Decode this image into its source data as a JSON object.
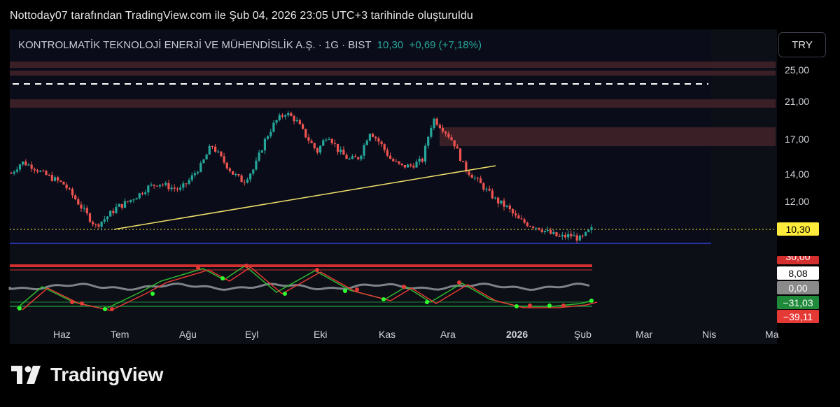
{
  "caption": "Nottoday07 tarafından TradingView.com ile Şub 04, 2026 23:05 UTC+3 tarihinde oluşturuldu",
  "symbol": {
    "name": "KONTROLMATİK TEKNOLOJİ ENERJİ VE MÜHENDİSLİK A.Ş.",
    "sep1": "·",
    "interval": "1G",
    "sep2": "·",
    "exchange": "BIST",
    "price": "10,30",
    "change": "+0,69 (+7,18%)"
  },
  "currency_button": "TRY",
  "colors": {
    "up": "#26a69a",
    "down": "#ef5350",
    "accent_green": "#1f8a3a",
    "zone": "#3a1f26",
    "trend": "#f0e06a"
  },
  "price_axis": [
    "25,00",
    "21,00",
    "17,00",
    "14,00",
    "12,00"
  ],
  "last_price_tag": "10,30",
  "indicator_tags": {
    "top_hidden": "30,00",
    "value": "8,08",
    "zero": "0,00",
    "lower": "−31,03",
    "bottom": "−39,11"
  },
  "time_axis": [
    "Haz",
    "Tem",
    "Ağu",
    "Eyl",
    "Eki",
    "Kas",
    "Ara",
    "2026",
    "Şub",
    "Mar",
    "Nis",
    "Ma"
  ],
  "brand": {
    "logo_icon": "tradingview-logo-icon",
    "text": "TradingView"
  },
  "chart_data": {
    "type": "candlestick",
    "price_ticks": [
      25,
      21,
      17,
      14,
      12
    ],
    "last_price": 10.3,
    "trend_note": "",
    "series_close": [
      14.0,
      15.0,
      14.6,
      14.0,
      13.6,
      13.2,
      12.2,
      11.3,
      10.5,
      11.0,
      11.6,
      11.9,
      12.4,
      13.0,
      13.3,
      13.0,
      12.8,
      13.6,
      14.7,
      16.5,
      15.2,
      14.0,
      13.4,
      14.4,
      16.8,
      18.8,
      19.8,
      19.0,
      17.2,
      15.9,
      17.5,
      16.0,
      15.2,
      15.4,
      17.8,
      16.6,
      15.2,
      14.6,
      14.7,
      15.2,
      19.2,
      18.0,
      16.6,
      14.4,
      13.6,
      12.8,
      12.0,
      11.6,
      10.9,
      10.6,
      10.4,
      10.1,
      9.9,
      10.0,
      9.8,
      10.3
    ],
    "ylim": [
      9.5,
      27
    ]
  }
}
